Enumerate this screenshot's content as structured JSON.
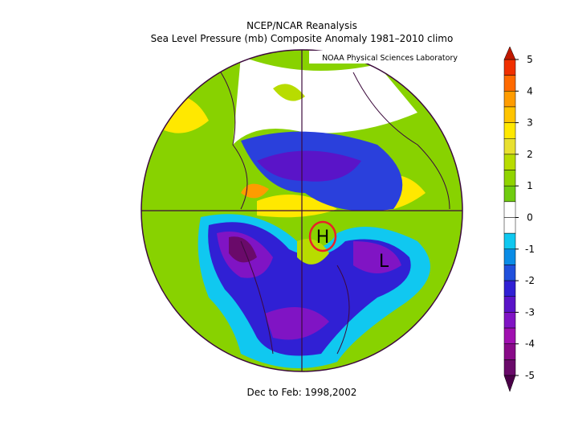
{
  "title": "NCEP/NCAR Reanalysis",
  "subtitle": "Sea Level Pressure (mb) Composite Anomaly 1981–2010 climo",
  "credit": "NOAA Physical Sciences Laboratory",
  "caption": "Dec to Feb: 1998,2002",
  "annotations": [
    {
      "text": "H",
      "color": "#e8202a"
    },
    {
      "text": "L",
      "color": "#000000"
    }
  ],
  "colorbar": {
    "ticks": [
      5,
      4,
      3,
      2,
      1,
      0,
      -1,
      -2,
      -3,
      -4,
      -5
    ],
    "over_color": "#c01800",
    "under_color": "#4a0048",
    "colors": [
      "#f03000",
      "#ff6a00",
      "#ff9c00",
      "#ffc400",
      "#ffe800",
      "#e8e030",
      "#b8dc00",
      "#90d400",
      "#70cc10",
      "#ffffff",
      "#ffffff",
      "#10c8f0",
      "#0a8ce6",
      "#2050dc",
      "#3020d4",
      "#5a14c8",
      "#8014c4",
      "#a010b0",
      "#880a88",
      "#6a0a6a"
    ]
  }
}
